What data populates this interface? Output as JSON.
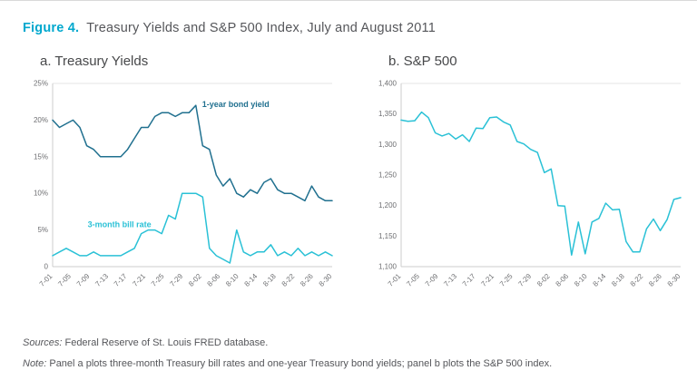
{
  "figure": {
    "label": "Figure 4.",
    "title": " Treasury Yields and S&P 500 Index, July and August 2011"
  },
  "colors": {
    "accent_teal": "#00a8ce",
    "bond_line": "#20708f",
    "bill_line": "#2ac1d6",
    "sp500_line": "#2ac1d6",
    "axis": "#cccccc",
    "tick_text": "#6d6e71"
  },
  "footer": {
    "sources_label": "Sources:",
    "sources_text": " Federal Reserve of St. Louis FRED database.",
    "note_label": "Note:",
    "note_text": " Panel a plots three-month Treasury bill rates and one-year Treasury bond yields; panel b plots the S&P 500 index."
  },
  "chart_data": [
    {
      "type": "line",
      "title": "a. Treasury Yields",
      "xlabel": "",
      "ylabel": "",
      "ylim": [
        0,
        25
      ],
      "grid": "top-line-only",
      "legend_position": "inline-annotations",
      "y_tick_vals": [
        0,
        5,
        10,
        15,
        20,
        25
      ],
      "y_tick_labels": [
        "0",
        "5%",
        "10%",
        "15%",
        "20%",
        "25%"
      ],
      "x_labels": [
        "7-01",
        "7-05",
        "7-09",
        "7-13",
        "7-17",
        "7-21",
        "7-25",
        "7-29",
        "8-02",
        "8-06",
        "8-10",
        "8-14",
        "8-18",
        "8-22",
        "8-26",
        "8-30"
      ],
      "dates": [
        "7-01",
        "7-05",
        "7-06",
        "7-07",
        "7-08",
        "7-11",
        "7-12",
        "7-13",
        "7-14",
        "7-15",
        "7-18",
        "7-19",
        "7-20",
        "7-21",
        "7-22",
        "7-25",
        "7-26",
        "7-27",
        "7-28",
        "7-29",
        "8-01",
        "8-02",
        "8-03",
        "8-04",
        "8-05",
        "8-08",
        "8-09",
        "8-10",
        "8-11",
        "8-12",
        "8-15",
        "8-16",
        "8-17",
        "8-18",
        "8-19",
        "8-22",
        "8-23",
        "8-24",
        "8-25",
        "8-26",
        "8-29",
        "8-30"
      ],
      "series": [
        {
          "name": "1-year bond yield",
          "color": "#20708f",
          "values": [
            20,
            19,
            19.5,
            20,
            19,
            16.5,
            16,
            15,
            15,
            15,
            15,
            16,
            17.5,
            19,
            19,
            20.5,
            21,
            21,
            20.5,
            21,
            21,
            22,
            16.5,
            16,
            12.5,
            11,
            12,
            10,
            9.5,
            10.5,
            10,
            11.5,
            12,
            10.5,
            10,
            10,
            9.5,
            9,
            11,
            9.5,
            9,
            9
          ]
        },
        {
          "name": "3-month bill rate",
          "color": "#2ac1d6",
          "values": [
            1.5,
            2,
            2.5,
            2,
            1.5,
            1.5,
            2,
            1.5,
            1.5,
            1.5,
            1.5,
            2,
            2.5,
            4.5,
            5,
            5,
            4.5,
            7,
            6.5,
            10,
            10,
            10,
            9.5,
            2.5,
            1.5,
            1,
            0.5,
            5,
            2,
            1.5,
            2,
            2,
            3,
            1.5,
            2,
            1.5,
            2.5,
            1.5,
            2,
            1.5,
            2,
            1.5
          ]
        }
      ],
      "annotations": [
        {
          "text": "1-year bond yield",
          "at_date": "8-02",
          "y": 21.8,
          "dx": 7,
          "anchor": "start",
          "color": "#20708f"
        },
        {
          "text": "3-month bill rate",
          "at_date": "7-13",
          "y": 5.4,
          "dx": -14,
          "anchor": "start",
          "color": "#2ac1d6"
        }
      ]
    },
    {
      "type": "line",
      "title": "b. S&P 500",
      "xlabel": "",
      "ylabel": "",
      "ylim": [
        1100,
        1400
      ],
      "grid": "top-line-only",
      "legend_position": "none",
      "y_tick_vals": [
        1100,
        1150,
        1200,
        1250,
        1300,
        1350,
        1400
      ],
      "y_tick_labels": [
        "1,100",
        "1,150",
        "1,200",
        "1,250",
        "1,300",
        "1,350",
        "1,400"
      ],
      "x_labels": [
        "7-01",
        "7-05",
        "7-09",
        "7-13",
        "7-17",
        "7-21",
        "7-25",
        "7-29",
        "8-02",
        "8-06",
        "8-10",
        "8-14",
        "8-18",
        "8-22",
        "8-26",
        "8-30"
      ],
      "dates": [
        "7-01",
        "7-05",
        "7-06",
        "7-07",
        "7-08",
        "7-11",
        "7-12",
        "7-13",
        "7-14",
        "7-15",
        "7-18",
        "7-19",
        "7-20",
        "7-21",
        "7-22",
        "7-25",
        "7-26",
        "7-27",
        "7-28",
        "7-29",
        "8-01",
        "8-02",
        "8-03",
        "8-04",
        "8-05",
        "8-08",
        "8-09",
        "8-10",
        "8-11",
        "8-12",
        "8-15",
        "8-16",
        "8-17",
        "8-18",
        "8-19",
        "8-22",
        "8-23",
        "8-24",
        "8-25",
        "8-26",
        "8-29",
        "8-30"
      ],
      "series": [
        {
          "name": "S&P 500",
          "color": "#2ac1d6",
          "values": [
            1340,
            1338,
            1339,
            1353,
            1344,
            1319,
            1314,
            1318,
            1309,
            1316,
            1305,
            1327,
            1326,
            1344,
            1345,
            1337,
            1332,
            1305,
            1301,
            1292,
            1287,
            1254,
            1260,
            1200,
            1199,
            1119,
            1173,
            1121,
            1173,
            1179,
            1204,
            1193,
            1194,
            1141,
            1124,
            1124,
            1162,
            1178,
            1159,
            1177,
            1210,
            1213
          ]
        }
      ],
      "annotations": []
    }
  ]
}
